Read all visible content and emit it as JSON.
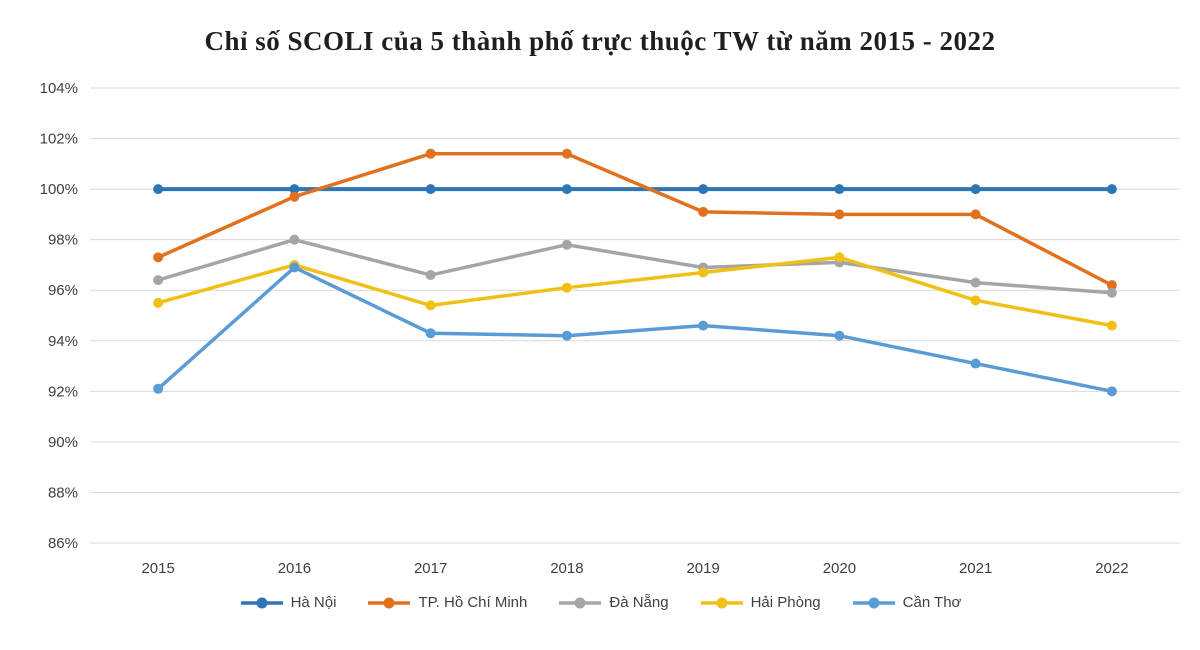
{
  "chart_data": {
    "type": "line",
    "title": "Chỉ số SCOLI của 5 thành phố trực thuộc TW từ năm 2015 - 2022",
    "categories": [
      "2015",
      "2016",
      "2017",
      "2018",
      "2019",
      "2020",
      "2021",
      "2022"
    ],
    "series": [
      {
        "name": "Hà Nội",
        "color": "#2e75b6",
        "stroke_width": 4,
        "values": [
          100,
          100,
          100,
          100,
          100,
          100,
          100,
          100
        ]
      },
      {
        "name": "TP. Hồ Chí Minh",
        "color": "#e2711d",
        "stroke_width": 3.5,
        "values": [
          97.3,
          99.7,
          101.4,
          101.4,
          99.1,
          99.0,
          99.0,
          96.2
        ]
      },
      {
        "name": "Đà Nẵng",
        "color": "#a5a5a5",
        "stroke_width": 3.5,
        "values": [
          96.4,
          98.0,
          96.6,
          97.8,
          96.9,
          97.1,
          96.3,
          95.9
        ]
      },
      {
        "name": "Hải Phòng",
        "color": "#f0c015",
        "stroke_width": 3.5,
        "values": [
          95.5,
          97.0,
          95.4,
          96.1,
          96.7,
          97.3,
          95.6,
          94.6
        ]
      },
      {
        "name": "Cần Thơ",
        "color": "#5b9bd5",
        "stroke_width": 3.5,
        "values": [
          92.1,
          96.9,
          94.3,
          94.2,
          94.6,
          94.2,
          93.1,
          92.0
        ]
      }
    ],
    "ylim": [
      86,
      104
    ],
    "y_tick_step": 2,
    "y_tick_labels": [
      "86%",
      "88%",
      "90%",
      "92%",
      "94%",
      "96%",
      "98%",
      "100%",
      "102%",
      "104%"
    ],
    "xlabel": "",
    "ylabel": "",
    "grid": "horizontal",
    "gridline_color": "#d9d9d9",
    "tick_label_color": "#404040",
    "legend_position": "bottom",
    "background_color": "#ffffff",
    "marker": "circle"
  }
}
